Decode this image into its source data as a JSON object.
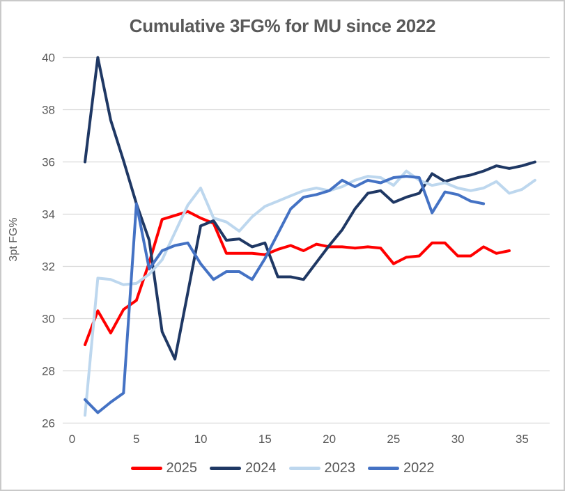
{
  "title": "Cumulative 3FG% for MU since 2022",
  "y_axis_title": "3pt FG%",
  "colors": {
    "grid": "#d9d9d9",
    "text": "#595959",
    "frame_border": "#c9c9c9"
  },
  "legend": [
    {
      "label": "2025",
      "color": "#ff0000"
    },
    {
      "label": "2024",
      "color": "#1f3864"
    },
    {
      "label": "2023",
      "color": "#bdd7ee"
    },
    {
      "label": "2022",
      "color": "#4472c4"
    }
  ],
  "chart_data": {
    "type": "line",
    "title": "Cumulative 3FG% for MU since 2022",
    "xlabel": "",
    "ylabel": "3pt FG%",
    "x_ticks": [
      0,
      5,
      10,
      15,
      20,
      25,
      30,
      35
    ],
    "y_ticks": [
      26,
      28,
      30,
      32,
      34,
      36,
      38,
      40
    ],
    "xlim": [
      0,
      37
    ],
    "ylim": [
      26,
      40
    ],
    "grid": "horizontal",
    "legend_position": "bottom",
    "x_unit": "game number",
    "series": [
      {
        "name": "2025",
        "color": "#ff0000",
        "x_start": 1,
        "values": [
          29.0,
          30.3,
          29.45,
          30.35,
          30.7,
          32.15,
          33.8,
          33.95,
          34.1,
          33.85,
          33.65,
          32.5,
          32.5,
          32.5,
          32.45,
          32.65,
          32.8,
          32.6,
          32.85,
          32.75,
          32.75,
          32.7,
          32.75,
          32.7,
          32.1,
          32.35,
          32.4,
          32.9,
          32.9,
          32.4,
          32.4,
          32.75,
          32.5,
          32.6
        ]
      },
      {
        "name": "2024",
        "color": "#1f3864",
        "x_start": 1,
        "values": [
          36.0,
          40.0,
          37.6,
          36.05,
          34.4,
          33.0,
          29.5,
          28.45,
          31.0,
          33.55,
          33.75,
          33.0,
          33.05,
          32.75,
          32.9,
          31.6,
          31.6,
          31.5,
          32.15,
          32.8,
          33.4,
          34.2,
          34.8,
          34.9,
          34.45,
          34.65,
          34.8,
          35.55,
          35.25,
          35.4,
          35.5,
          35.65,
          35.85,
          35.75,
          35.85,
          36.0
        ]
      },
      {
        "name": "2023",
        "color": "#bdd7ee",
        "x_start": 1,
        "values": [
          26.3,
          31.55,
          31.5,
          31.3,
          31.35,
          31.7,
          32.25,
          33.3,
          34.35,
          35.0,
          33.85,
          33.7,
          33.35,
          33.9,
          34.3,
          34.5,
          34.7,
          34.9,
          35.0,
          34.9,
          35.05,
          35.3,
          35.45,
          35.4,
          35.1,
          35.65,
          35.3,
          35.1,
          35.2,
          35.0,
          34.9,
          35.0,
          35.25,
          34.8,
          34.95,
          35.3
        ]
      },
      {
        "name": "2022",
        "color": "#4472c4",
        "x_start": 1,
        "values": [
          26.9,
          26.4,
          26.8,
          27.15,
          34.4,
          31.9,
          32.6,
          32.8,
          32.9,
          32.1,
          31.5,
          31.8,
          31.8,
          31.5,
          32.3,
          33.25,
          34.2,
          34.65,
          34.75,
          34.9,
          35.3,
          35.05,
          35.3,
          35.2,
          35.4,
          35.45,
          35.4,
          34.05,
          34.85,
          34.75,
          34.5,
          34.4
        ]
      }
    ]
  }
}
